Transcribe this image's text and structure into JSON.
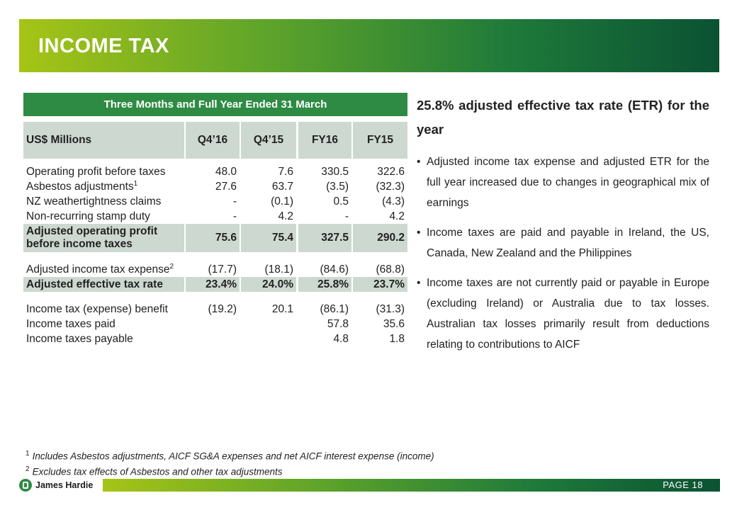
{
  "title": "INCOME TAX",
  "table": {
    "caption": "Three Months and Full Year Ended 31 March",
    "headers": [
      "US$ Millions",
      "Q4’16",
      "Q4’15",
      "FY16",
      "FY15"
    ],
    "rows": [
      {
        "label": "Operating profit before taxes",
        "sup": "",
        "values": [
          "48.0",
          "7.6",
          "330.5",
          "322.6"
        ]
      },
      {
        "label": "Asbestos adjustments",
        "sup": "1",
        "values": [
          "27.6",
          "63.7",
          "(3.5)",
          "(32.3)"
        ]
      },
      {
        "label": "NZ weathertightness claims",
        "sup": "",
        "values": [
          "-",
          "(0.1)",
          "0.5",
          "(4.3)"
        ]
      },
      {
        "label": "Non-recurring stamp duty",
        "sup": "",
        "values": [
          "-",
          "4.2",
          "-",
          "4.2"
        ]
      },
      {
        "label_line1": "Adjusted operating profit",
        "label_line2": "before income taxes",
        "values": [
          "75.6",
          "75.4",
          "327.5",
          "290.2"
        ]
      },
      {
        "label": "Adjusted income tax expense",
        "sup": "2",
        "values": [
          "(17.7)",
          "(18.1)",
          "(84.6)",
          "(68.8)"
        ]
      },
      {
        "label": "Adjusted effective tax rate",
        "sup": "",
        "values": [
          "23.4%",
          "24.0%",
          "25.8%",
          "23.7%"
        ]
      },
      {
        "label": "Income tax (expense) benefit",
        "sup": "",
        "values": [
          "(19.2)",
          "20.1",
          "(86.1)",
          "(31.3)"
        ]
      },
      {
        "label": "Income taxes paid",
        "sup": "",
        "values": [
          "",
          "",
          "57.8",
          "35.6"
        ]
      },
      {
        "label": "Income taxes payable",
        "sup": "",
        "values": [
          "",
          "",
          "4.8",
          "1.8"
        ]
      }
    ]
  },
  "commentary": {
    "headline": "25.8% adjusted effective tax rate (ETR) for the year",
    "bullets": [
      "Adjusted income tax expense and adjusted ETR for the full year increased due to changes in geographical mix of earnings",
      "Income taxes are paid and payable in Ireland, the US, Canada, New Zealand and the Philippines",
      "Income taxes are not currently paid or payable in Europe (excluding Ireland) or Australia due to tax losses. Australian tax losses primarily result from deductions relating to contributions to AICF"
    ]
  },
  "footnotes": [
    {
      "mark": "1",
      "text": "Includes Asbestos adjustments, AICF SG&A expenses and net AICF interest expense (income)"
    },
    {
      "mark": "2",
      "text": "Excludes tax effects of Asbestos and other tax adjustments"
    }
  ],
  "footer": {
    "logo_text": "James Hardie",
    "page_label": "PAGE  18"
  },
  "colors": {
    "brand_green": "#2e8b43",
    "lime": "#a6c416",
    "dark_green": "#0b5233",
    "highlight_row": "#cdd9d0"
  }
}
